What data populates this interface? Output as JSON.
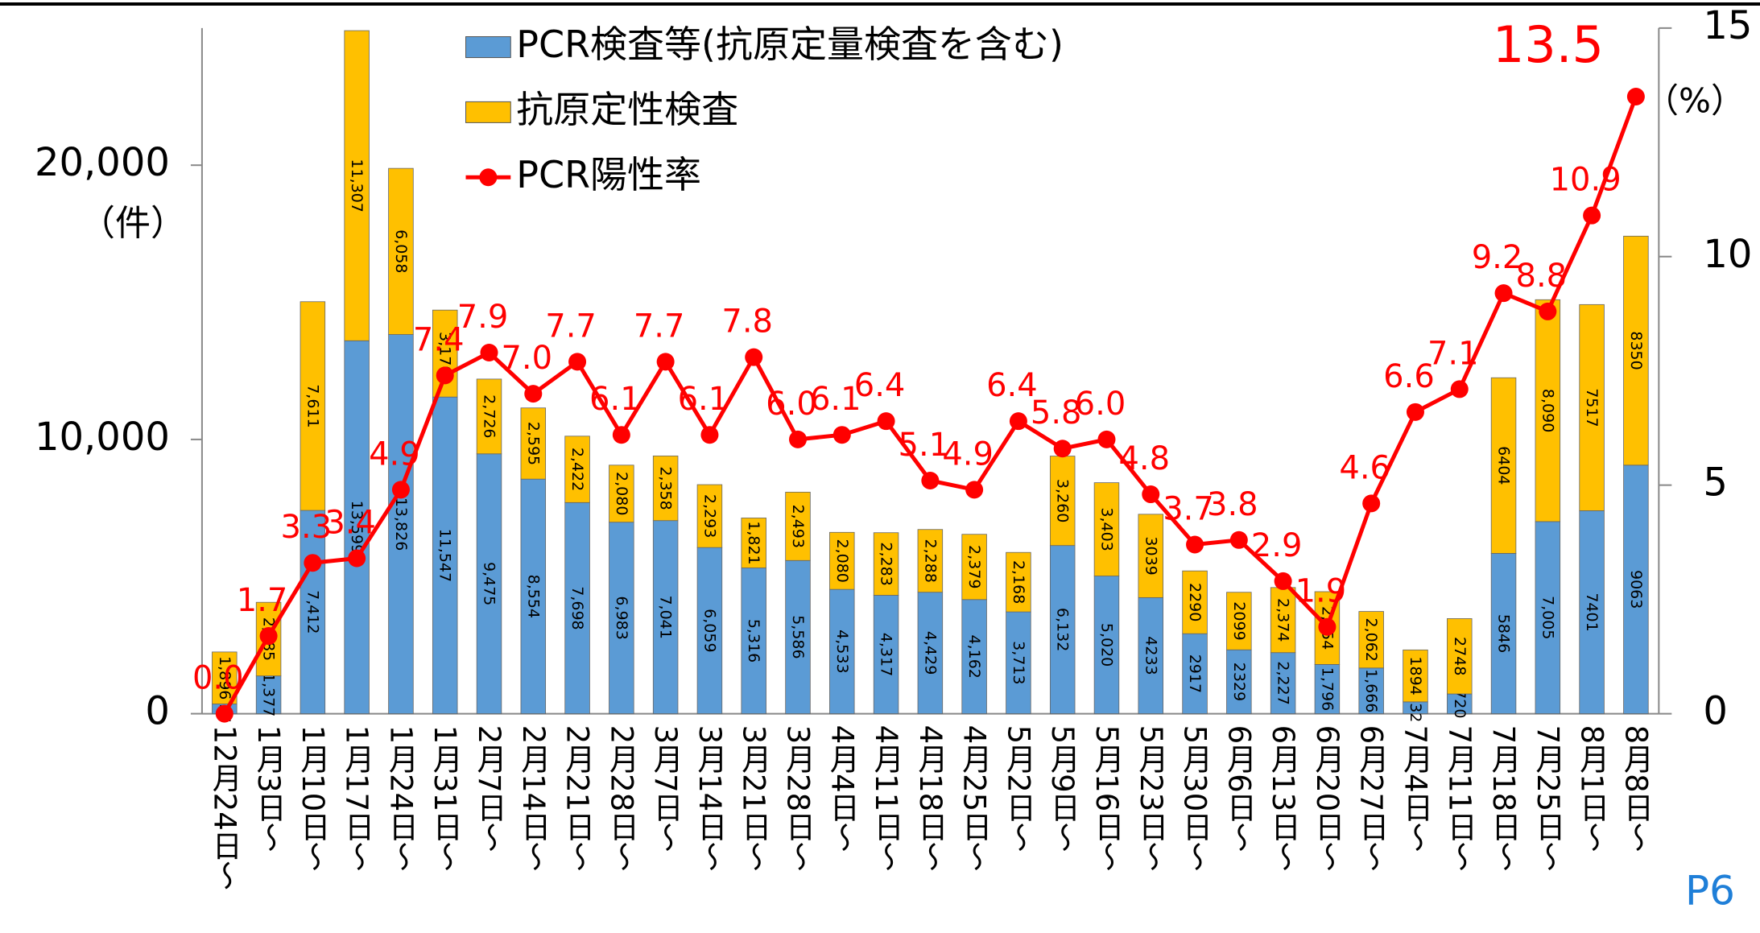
{
  "chart_data": {
    "type": "bar",
    "stacked": true,
    "categories": [
      "12月24日～",
      "1月3日～",
      "1月10日～",
      "1月17日～",
      "1月24日～",
      "1月31日～",
      "2月7日～",
      "2月14日～",
      "2月21日～",
      "2月28日～",
      "3月7日～",
      "3月14日～",
      "3月21日～",
      "3月28日～",
      "4月4日～",
      "4月11日～",
      "4月18日～",
      "4月25日～",
      "5月2日～",
      "5月9日～",
      "5月16日～",
      "5月23日～",
      "5月30日～",
      "6月6日～",
      "6月13日～",
      "6月20日～",
      "6月27日～",
      "7月4日～",
      "7月11日～",
      "7月18日～",
      "7月25日～",
      "8月1日～",
      "8月8日～"
    ],
    "series": [
      {
        "name": "PCR検査等(抗原定量検査を含む)",
        "color": "#5b9bd5",
        "values": [
          355,
          1377,
          7412,
          13599,
          13826,
          11547,
          9475,
          8554,
          7698,
          6983,
          7041,
          6059,
          5316,
          5586,
          4533,
          4317,
          4429,
          4162,
          3713,
          6132,
          5020,
          4233,
          2917,
          2329,
          2227,
          1796,
          1666,
          432,
          720,
          5846,
          7005,
          7401,
          9063
        ],
        "value_labels": [
          "355",
          "1,377",
          "7,412",
          "13,599",
          "13,826",
          "11,547",
          "9,475",
          "8,554",
          "7,698",
          "6,983",
          "7,041",
          "6,059",
          "5,316",
          "5,586",
          "4,533",
          "4,317",
          "4,429",
          "4,162",
          "3,713",
          "6,132",
          "5,020",
          "4233",
          "2917",
          "2329",
          "2,227",
          "1,796",
          "1,666",
          "432",
          "720",
          "5846",
          "7,005",
          "7401",
          "9063"
        ]
      },
      {
        "name": "抗原定性検査",
        "color": "#ffc000",
        "values": [
          1896,
          2685,
          7611,
          11307,
          6058,
          3170,
          2726,
          2595,
          2422,
          2080,
          2358,
          2293,
          1821,
          2493,
          2080,
          2283,
          2288,
          2379,
          2168,
          3260,
          3403,
          3039,
          2290,
          2099,
          2374,
          2654,
          2062,
          1894,
          2748,
          6404,
          8090,
          7517,
          8350
        ],
        "value_labels": [
          "1,896",
          "2,685",
          "7,611",
          "11,307",
          "6,058",
          "3,170",
          "2,726",
          "2,595",
          "2,422",
          "2,080",
          "2,358",
          "2,293",
          "1,821",
          "2,493",
          "2,080",
          "2,283",
          "2,288",
          "2,379",
          "2,168",
          "3,260",
          "3,403",
          "3039",
          "2290",
          "2099",
          "2,374",
          "2,654",
          "2,062",
          "1894",
          "2748",
          "6404",
          "8,090",
          "7517",
          "8350"
        ]
      },
      {
        "name": "PCR陽性率",
        "type": "line",
        "axis": "y2",
        "color": "#ff0000",
        "values": [
          0.0,
          1.7,
          3.3,
          3.4,
          4.9,
          7.4,
          7.9,
          7.0,
          7.7,
          6.1,
          7.7,
          6.1,
          7.8,
          6.0,
          6.1,
          6.4,
          5.1,
          4.9,
          6.4,
          5.8,
          6.0,
          4.8,
          3.7,
          3.8,
          2.9,
          1.9,
          4.6,
          6.6,
          7.1,
          9.2,
          8.8,
          10.9,
          13.5
        ],
        "value_labels": [
          "0.0",
          "1.7",
          "3.3",
          "3.4",
          "4.9",
          "7.4",
          "7.9",
          "7.0",
          "7.7",
          "6.1",
          "7.7",
          "6.1",
          "7.8",
          "6.0",
          "6.1",
          "6.4",
          "5.1",
          "4.9",
          "6.4",
          "5.8",
          "6.0",
          "4.8",
          "3.7",
          "3.8",
          "2.9",
          "1.9",
          "4.6",
          "6.6",
          "7.1",
          "9.2",
          "8.8",
          "10.9",
          "13.5"
        ]
      }
    ],
    "ylim": [
      0,
      25000
    ],
    "yticks": [
      0,
      {
        "value": 10000,
        "label": "10,000"
      },
      {
        "value": 20000,
        "label": "20,000"
      }
    ],
    "ylabel": "（件）",
    "y2lim": [
      0,
      15
    ],
    "y2ticks": [
      0,
      5,
      10,
      15
    ],
    "y2label": "（%）",
    "page_label": "P6"
  }
}
